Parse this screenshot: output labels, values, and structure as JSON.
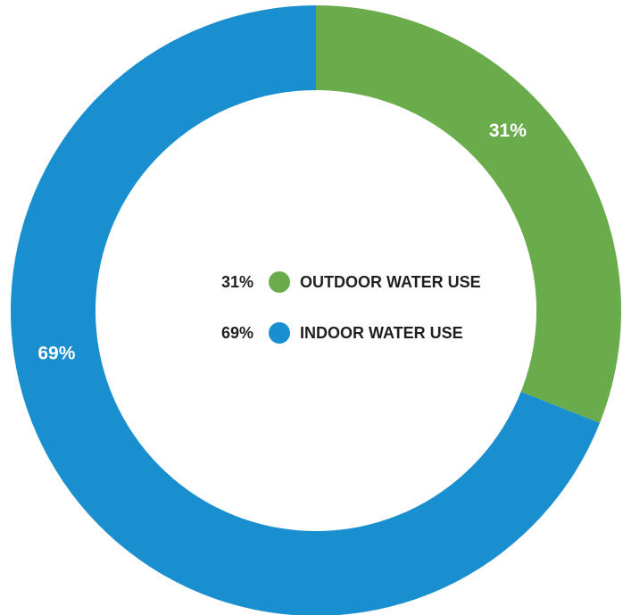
{
  "chart_data": {
    "type": "pie",
    "style": "donut",
    "slices": [
      {
        "label": "OUTDOOR WATER USE",
        "value": 31,
        "display": "31%",
        "color": "#6aac4b"
      },
      {
        "label": "INDOOR WATER USE",
        "value": 69,
        "display": "69%",
        "color": "#1a8fd0"
      }
    ],
    "legend_placement": "center"
  }
}
